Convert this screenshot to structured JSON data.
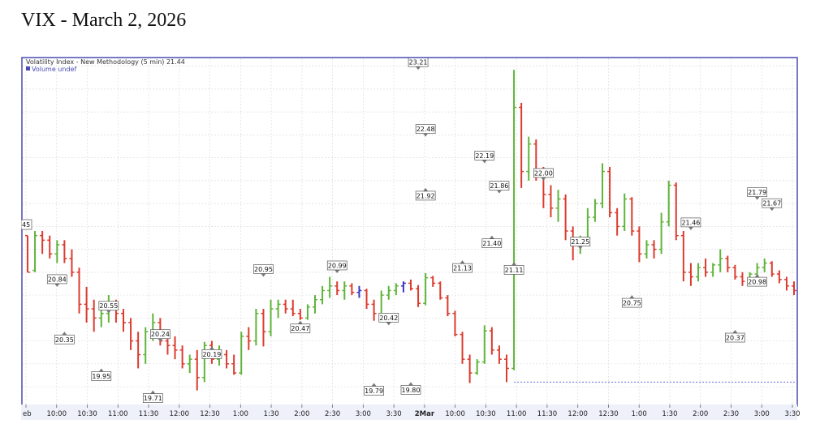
{
  "page": {
    "title": "VIX - March 2, 2026"
  },
  "chart_data": {
    "type": "ohlc",
    "legend": {
      "series_label": "Volatility Index - New Methodology (5 min) 21.44",
      "volume_label": "Volume undef"
    },
    "x_ticks": [
      "eb",
      "10:00",
      "10:30",
      "11:00",
      "11:30",
      "12:00",
      "12:30",
      "1:00",
      "1:30",
      "2:00",
      "2:30",
      "3:00",
      "3:30",
      "2Mar",
      "10:00",
      "10:30",
      "11:00",
      "11:30",
      "12:00",
      "12:30",
      "1:00",
      "1:30",
      "2:00",
      "2:30",
      "3:00",
      "3:30"
    ],
    "left_price_label": "45",
    "ylim": [
      19.6,
      23.3
    ],
    "grid": true,
    "colors": {
      "up": "#5fb43a",
      "down": "#dc3b2e",
      "neutral": "#3c34c4",
      "frame": "#4a4ab4",
      "grid": "#dddddd",
      "reference_line": "#6a6ad8"
    },
    "reference_line": 19.8,
    "annotations": [
      {
        "text": "20.84",
        "bar": 4,
        "pos": "above",
        "value": 20.84
      },
      {
        "text": "20.35",
        "bar": 5,
        "pos": "below",
        "value": 20.35
      },
      {
        "text": "20.55",
        "bar": 11,
        "pos": "above",
        "value": 20.55
      },
      {
        "text": "19.95",
        "bar": 10,
        "pos": "below",
        "value": 19.95
      },
      {
        "text": "19.71",
        "bar": 17,
        "pos": "below",
        "value": 19.71
      },
      {
        "text": "20.24",
        "bar": 18,
        "pos": "above",
        "value": 20.24
      },
      {
        "text": "20.19",
        "bar": 25,
        "pos": "below",
        "value": 20.19
      },
      {
        "text": "20.95",
        "bar": 32,
        "pos": "above",
        "value": 20.95
      },
      {
        "text": "20.47",
        "bar": 37,
        "pos": "below",
        "value": 20.47
      },
      {
        "text": "20.99",
        "bar": 42,
        "pos": "above",
        "value": 20.99
      },
      {
        "text": "19.79",
        "bar": 47,
        "pos": "below",
        "value": 19.79
      },
      {
        "text": "20.42",
        "bar": 49,
        "pos": "above",
        "value": 20.42
      },
      {
        "text": "19.80",
        "bar": 52,
        "pos": "below",
        "value": 19.8
      },
      {
        "text": "23.21",
        "bar": 53,
        "pos": "above",
        "value": 23.21
      },
      {
        "text": "22.48",
        "bar": 54,
        "pos": "above",
        "value": 22.48
      },
      {
        "text": "21.92",
        "bar": 54,
        "pos": "below",
        "value": 21.92
      },
      {
        "text": "21.13",
        "bar": 59,
        "pos": "below",
        "value": 21.13
      },
      {
        "text": "22.19",
        "bar": 62,
        "pos": "above",
        "value": 22.19
      },
      {
        "text": "21.86",
        "bar": 64,
        "pos": "above",
        "value": 21.86
      },
      {
        "text": "21.40",
        "bar": 63,
        "pos": "below",
        "value": 21.4
      },
      {
        "text": "21.11",
        "bar": 66,
        "pos": "below",
        "value": 21.11
      },
      {
        "text": "22.00",
        "bar": 70,
        "pos": "above",
        "value": 22.0
      },
      {
        "text": "21.25",
        "bar": 75,
        "pos": "above",
        "value": 21.25
      },
      {
        "text": "20.75",
        "bar": 82,
        "pos": "below",
        "value": 20.75
      },
      {
        "text": "21.46",
        "bar": 90,
        "pos": "above",
        "value": 21.46
      },
      {
        "text": "20.37",
        "bar": 96,
        "pos": "below",
        "value": 20.37
      },
      {
        "text": "21.79",
        "bar": 99,
        "pos": "above",
        "value": 21.79
      },
      {
        "text": "21.67",
        "bar": 101,
        "pos": "above",
        "value": 21.67
      },
      {
        "text": "20.98",
        "bar": 99,
        "pos": "below",
        "value": 20.98
      }
    ],
    "bars": [
      [
        21.4,
        21.4,
        21.0,
        21.0
      ],
      [
        21.02,
        21.45,
        21.0,
        21.4
      ],
      [
        21.4,
        21.45,
        21.2,
        21.35
      ],
      [
        21.35,
        21.4,
        21.15,
        21.2
      ],
      [
        21.2,
        21.35,
        21.1,
        21.3
      ],
      [
        21.3,
        21.35,
        21.1,
        21.15
      ],
      [
        21.15,
        21.25,
        20.95,
        21.0
      ],
      [
        21.0,
        21.05,
        20.55,
        20.65
      ],
      [
        20.65,
        20.84,
        20.45,
        20.6
      ],
      [
        20.6,
        20.7,
        20.35,
        20.5
      ],
      [
        20.5,
        20.65,
        20.4,
        20.55
      ],
      [
        20.55,
        20.75,
        20.45,
        20.65
      ],
      [
        20.65,
        20.7,
        20.45,
        20.55
      ],
      [
        20.55,
        20.6,
        20.35,
        20.45
      ],
      [
        20.45,
        20.5,
        20.15,
        20.25
      ],
      [
        20.25,
        20.35,
        19.95,
        20.1
      ],
      [
        20.1,
        20.4,
        20.0,
        20.35
      ],
      [
        20.35,
        20.55,
        20.25,
        20.45
      ],
      [
        20.45,
        20.5,
        20.2,
        20.25
      ],
      [
        20.25,
        20.35,
        20.1,
        20.2
      ],
      [
        20.2,
        20.3,
        20.05,
        20.15
      ],
      [
        20.15,
        20.2,
        19.95,
        20.0
      ],
      [
        20.0,
        20.1,
        19.9,
        20.05
      ],
      [
        20.05,
        20.15,
        19.71,
        19.85
      ],
      [
        19.85,
        20.24,
        19.8,
        20.2
      ],
      [
        20.2,
        20.25,
        20.0,
        20.05
      ],
      [
        20.05,
        20.2,
        19.98,
        20.1
      ],
      [
        20.1,
        20.15,
        19.95,
        20.0
      ],
      [
        20.0,
        20.1,
        19.88,
        19.9
      ],
      [
        19.9,
        20.35,
        19.88,
        20.3
      ],
      [
        20.3,
        20.4,
        20.15,
        20.25
      ],
      [
        20.25,
        20.6,
        20.2,
        20.55
      ],
      [
        20.55,
        20.6,
        20.19,
        20.35
      ],
      [
        20.35,
        20.7,
        20.3,
        20.6
      ],
      [
        20.6,
        20.7,
        20.5,
        20.65
      ],
      [
        20.65,
        20.7,
        20.55,
        20.6
      ],
      [
        20.6,
        20.7,
        20.52,
        20.55
      ],
      [
        20.55,
        20.6,
        20.48,
        20.5
      ],
      [
        20.5,
        20.65,
        20.48,
        20.62
      ],
      [
        20.62,
        20.75,
        20.55,
        20.7
      ],
      [
        20.7,
        20.85,
        20.65,
        20.8
      ],
      [
        20.8,
        20.95,
        20.72,
        20.85
      ],
      [
        20.85,
        20.9,
        20.75,
        20.8
      ],
      [
        20.8,
        20.9,
        20.7,
        20.85
      ],
      [
        20.85,
        20.88,
        20.75,
        20.78
      ],
      [
        20.78,
        20.85,
        20.72,
        20.8
      ],
      [
        20.8,
        20.82,
        20.6,
        20.65
      ],
      [
        20.65,
        20.7,
        20.47,
        20.55
      ],
      [
        20.55,
        20.8,
        20.52,
        20.75
      ],
      [
        20.75,
        20.85,
        20.7,
        20.8
      ],
      [
        20.8,
        20.88,
        20.75,
        20.85
      ],
      [
        20.85,
        20.9,
        20.78,
        20.88
      ],
      [
        20.88,
        20.92,
        20.8,
        20.82
      ],
      [
        20.82,
        20.86,
        20.62,
        20.66
      ],
      [
        20.66,
        20.99,
        20.64,
        20.94
      ],
      [
        20.94,
        20.96,
        20.84,
        20.88
      ],
      [
        20.88,
        20.9,
        20.7,
        20.72
      ],
      [
        20.72,
        20.75,
        20.52,
        20.55
      ],
      [
        20.55,
        20.58,
        20.3,
        20.32
      ],
      [
        20.32,
        20.35,
        20.0,
        20.05
      ],
      [
        20.05,
        20.1,
        19.79,
        19.9
      ],
      [
        19.9,
        20.05,
        19.88,
        20.02
      ],
      [
        20.02,
        20.42,
        20.0,
        20.36
      ],
      [
        20.36,
        20.4,
        20.1,
        20.15
      ],
      [
        20.15,
        20.2,
        20.0,
        20.05
      ],
      [
        20.05,
        20.1,
        19.8,
        19.95
      ],
      [
        19.95,
        23.21,
        19.93,
        22.8
      ],
      [
        22.8,
        22.85,
        21.92,
        22.1
      ],
      [
        22.1,
        22.48,
        22.0,
        22.4
      ],
      [
        22.4,
        22.45,
        22.0,
        22.05
      ],
      [
        22.05,
        22.15,
        21.7,
        21.85
      ],
      [
        21.85,
        21.95,
        21.6,
        21.7
      ],
      [
        21.7,
        21.9,
        21.55,
        21.8
      ],
      [
        21.8,
        21.85,
        21.35,
        21.45
      ],
      [
        21.45,
        21.5,
        21.13,
        21.3
      ],
      [
        21.3,
        21.4,
        21.2,
        21.35
      ],
      [
        21.35,
        21.7,
        21.3,
        21.6
      ],
      [
        21.6,
        21.8,
        21.55,
        21.75
      ],
      [
        21.75,
        22.19,
        21.7,
        22.1
      ],
      [
        22.1,
        22.15,
        21.6,
        21.65
      ],
      [
        21.65,
        21.7,
        21.4,
        21.5
      ],
      [
        21.5,
        21.86,
        21.45,
        21.8
      ],
      [
        21.8,
        21.82,
        21.4,
        21.45
      ],
      [
        21.45,
        21.5,
        21.11,
        21.2
      ],
      [
        21.2,
        21.35,
        21.15,
        21.3
      ],
      [
        21.3,
        21.35,
        21.15,
        21.25
      ],
      [
        21.25,
        21.65,
        21.2,
        21.55
      ],
      [
        21.55,
        22.0,
        21.5,
        21.95
      ],
      [
        21.95,
        21.98,
        21.35,
        21.4
      ],
      [
        21.4,
        21.45,
        20.9,
        21.0
      ],
      [
        21.0,
        21.1,
        20.85,
        20.95
      ],
      [
        20.95,
        21.1,
        20.9,
        21.05
      ],
      [
        21.05,
        21.15,
        20.95,
        21.0
      ],
      [
        21.0,
        21.1,
        20.95,
        21.08
      ],
      [
        21.08,
        21.25,
        21.0,
        21.15
      ],
      [
        21.15,
        21.18,
        21.0,
        21.05
      ],
      [
        21.05,
        21.08,
        20.92,
        20.95
      ],
      [
        20.95,
        21.0,
        20.85,
        20.9
      ],
      [
        20.9,
        21.0,
        20.88,
        20.98
      ],
      [
        20.98,
        21.1,
        20.95,
        21.05
      ],
      [
        21.05,
        21.15,
        21.0,
        21.1
      ],
      [
        21.1,
        21.12,
        20.95,
        20.98
      ],
      [
        20.98,
        21.02,
        20.88,
        20.92
      ],
      [
        20.92,
        20.95,
        20.8,
        20.85
      ],
      [
        20.85,
        20.9,
        20.75,
        20.8
      ]
    ]
  }
}
